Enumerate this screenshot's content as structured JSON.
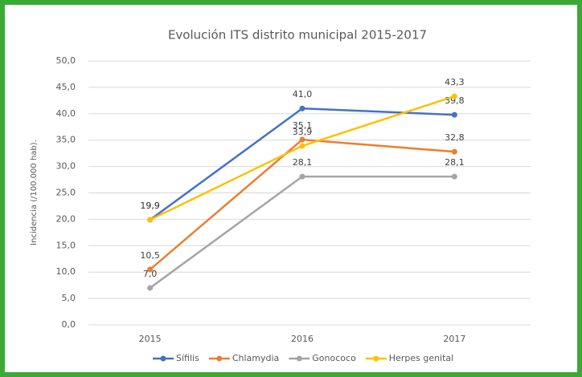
{
  "chart_data": {
    "type": "line",
    "title": "Evolución ITS distrito municipal 2015-2017",
    "y_label": "Incidencia (/100.000 hab).",
    "categories": [
      "2015",
      "2016",
      "2017"
    ],
    "series": [
      {
        "name": "Sífilis",
        "color": "#4472c4",
        "values": [
          19.9,
          41.0,
          39.8
        ],
        "value_labels": [
          "19,9",
          "41,0",
          "39,8"
        ]
      },
      {
        "name": "Chlamydia",
        "color": "#ed7d31",
        "values": [
          10.5,
          35.1,
          32.8
        ],
        "value_labels": [
          "10,5",
          "35,1",
          "32,8"
        ]
      },
      {
        "name": "Gonococo",
        "color": "#a5a5a5",
        "values": [
          7.0,
          28.1,
          28.1
        ],
        "value_labels": [
          "7,0",
          "28,1",
          "28,1"
        ]
      },
      {
        "name": "Herpes genital",
        "color": "#ffc000",
        "values": [
          19.9,
          33.9,
          43.3
        ],
        "value_labels": [
          "19,9",
          "33,9",
          "43,3"
        ]
      }
    ],
    "ylim": [
      0,
      50
    ],
    "yticks": [
      {
        "value": 0,
        "label": "0,0"
      },
      {
        "value": 5,
        "label": "5,0"
      },
      {
        "value": 10,
        "label": "10,0"
      },
      {
        "value": 15,
        "label": "15,0"
      },
      {
        "value": 20,
        "label": "20,0"
      },
      {
        "value": 25,
        "label": "25,0"
      },
      {
        "value": 30,
        "label": "30,0"
      },
      {
        "value": 35,
        "label": "35,0"
      },
      {
        "value": 40,
        "label": "40,0"
      },
      {
        "value": 45,
        "label": "45,0"
      },
      {
        "value": 50,
        "label": "50,0"
      }
    ],
    "grid": true,
    "legend": "bottom"
  }
}
